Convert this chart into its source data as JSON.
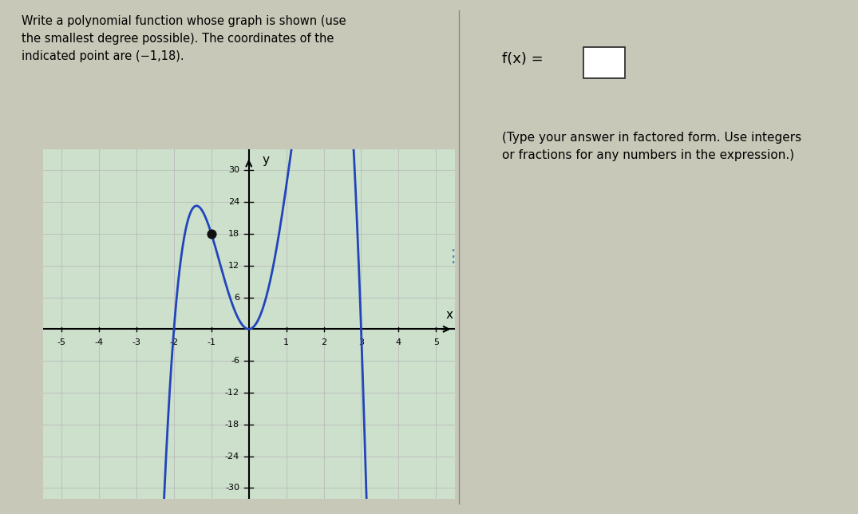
{
  "title_text": "Write a polynomial function whose graph is shown (use\nthe smallest degree possible). The coordinates of the\nindicated point are (−1,18).",
  "xlabel": "x",
  "ylabel": "y",
  "xlim": [
    -5.5,
    5.5
  ],
  "ylim": [
    -32,
    34
  ],
  "xticks": [
    -5,
    -4,
    -3,
    -2,
    -1,
    1,
    2,
    3,
    4,
    5
  ],
  "yticks": [
    -30,
    -24,
    -18,
    -12,
    -6,
    6,
    12,
    18,
    24,
    30
  ],
  "curve_color": "#2244bb",
  "curve_lw": 2.0,
  "dot_x": -1,
  "dot_y": 18,
  "dot_color": "#111111",
  "dot_size": 60,
  "leading_coeff": -4.5,
  "grid_color": "#bbbbbb",
  "grid_minor_color": "#dddddd",
  "plot_bg": "#cce0cc",
  "right_bg": "#c8c8b8",
  "fig_bg": "#c8c8b8"
}
